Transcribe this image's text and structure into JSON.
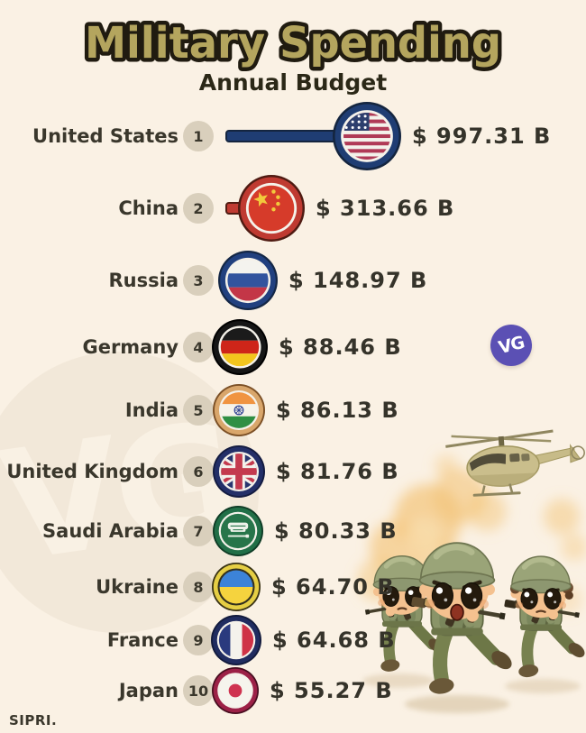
{
  "page": {
    "background": "#faf1e4"
  },
  "header": {
    "title": "Military Spending",
    "subtitle": "Annual Budget",
    "title_color": "#b4a55e",
    "title_outline": "#201b10"
  },
  "logo": {
    "label": "VG",
    "color": "#5b50b4"
  },
  "watermark": {
    "label": "VG"
  },
  "source": {
    "label": "SIPRI."
  },
  "chart_data": {
    "type": "bar",
    "title": "Military Spending",
    "subtitle": "Annual Budget",
    "source": "SIPRI.",
    "unit": "USD billions",
    "orientation": "horizontal",
    "categories": [
      "United States",
      "China",
      "Russia",
      "Germany",
      "India",
      "United Kingdom",
      "Saudi Arabia",
      "Ukraine",
      "France",
      "Japan"
    ],
    "values": [
      997.31,
      313.66,
      148.97,
      88.46,
      86.13,
      81.76,
      80.33,
      64.7,
      64.68,
      55.27
    ],
    "rows": [
      {
        "rank": "1",
        "country": "United States",
        "value": 997.31,
        "amount_label": "$ 997.31 B",
        "flag": "us",
        "ring": "#1f3d73",
        "ring_dark": "#14253f",
        "gap": "#f5f2ea"
      },
      {
        "rank": "2",
        "country": "China",
        "value": 313.66,
        "amount_label": "$ 313.66 B",
        "flag": "china",
        "ring": "#bf3a31",
        "ring_dark": "#4f1b12",
        "gap": "#f5f2ea"
      },
      {
        "rank": "3",
        "country": "Russia",
        "value": 148.97,
        "amount_label": "$ 148.97 B",
        "flag": "russia",
        "ring": "#21407f",
        "ring_dark": "#142746",
        "gap": "#f5f2ea"
      },
      {
        "rank": "4",
        "country": "Germany",
        "value": 88.46,
        "amount_label": "$ 88.46 B",
        "flag": "germany",
        "ring": "#161616",
        "ring_dark": "#000000",
        "gap": "#f5f2ea"
      },
      {
        "rank": "5",
        "country": "India",
        "value": 86.13,
        "amount_label": "$ 86.13 B",
        "flag": "india",
        "ring": "#d9a66b",
        "ring_dark": "#7c5026",
        "gap": "#f5f2ea"
      },
      {
        "rank": "6",
        "country": "United Kingdom",
        "value": 81.76,
        "amount_label": "$ 81.76 B",
        "flag": "uk",
        "ring": "#232f68",
        "ring_dark": "#131b40",
        "gap": "#f5f2ea"
      },
      {
        "rank": "7",
        "country": "Saudi Arabia",
        "value": 80.33,
        "amount_label": "$ 80.33 B",
        "flag": "saudi",
        "ring": "#216f47",
        "ring_dark": "#0e3b25",
        "gap": "#f5f2ea"
      },
      {
        "rank": "8",
        "country": "Ukraine",
        "value": 64.7,
        "amount_label": "$ 64.70 B",
        "flag": "ukraine",
        "ring": "#e5ce44",
        "ring_dark": "#3a3314",
        "gap": "#33301d"
      },
      {
        "rank": "9",
        "country": "France",
        "value": 64.68,
        "amount_label": "$ 64.68 B",
        "flag": "france",
        "ring": "#202c60",
        "ring_dark": "#121a3c",
        "gap": "#f5f2ea"
      },
      {
        "rank": "10",
        "country": "Japan",
        "value": 55.27,
        "amount_label": "$ 55.27 B",
        "flag": "japan",
        "ring": "#9c2147",
        "ring_dark": "#480e20",
        "gap": "#f5f2ea"
      }
    ]
  }
}
